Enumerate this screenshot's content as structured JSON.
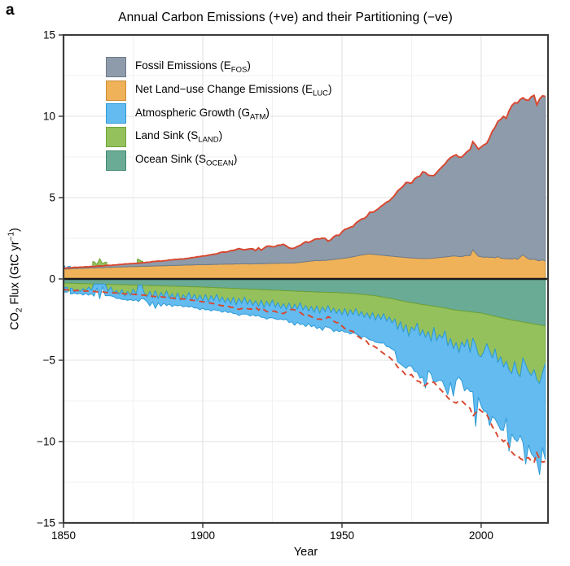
{
  "panel_label": "a",
  "colors": {
    "background": "#FFFFFF",
    "panel_border": "#3C3C3C",
    "zero_line": "#1A1A1A",
    "grid_major": "#E2E2E2",
    "grid_minor": "#F1F1F1",
    "tick": "#333333",
    "text": "#000000",
    "total_line": "#D9472F"
  },
  "axes": {
    "x_label": "Year",
    "y_label": {
      "pre": "CO",
      "sub": "2",
      "mid": " Flux (GtC yr",
      "sup": "−1",
      "post": ")"
    },
    "x_ticks": [
      1850,
      1900,
      1950,
      2000
    ],
    "x_minor_ticks": [
      1875,
      1925,
      1975
    ],
    "y_ticks": [
      15,
      10,
      5,
      0,
      -5,
      -10,
      -15
    ],
    "y_minor_ticks": [
      12.5,
      7.5,
      2.5,
      -2.5,
      -7.5,
      -12.5
    ]
  },
  "legend": {
    "items": [
      {
        "series": "fossil",
        "pre": "Fossil Emissions (E",
        "sub": "FOS",
        "post": ")"
      },
      {
        "series": "land_use",
        "pre": "Net Land−use Change Emissions (E",
        "sub": "LUC",
        "post": ")"
      },
      {
        "series": "atm_growth",
        "pre": "Atmospheric Growth (G",
        "sub": "ATM",
        "post": ")"
      },
      {
        "series": "land_sink",
        "pre": "Land Sink (S",
        "sub": "LAND",
        "post": ")"
      },
      {
        "series": "ocean_sink",
        "pre": "Ocean Sink (S",
        "sub": "OCEAN",
        "post": ")"
      }
    ]
  },
  "chart_data": {
    "type": "area",
    "title": "Annual Carbon Emissions (+ve) and their Partitioning (−ve)",
    "xlabel": "Year",
    "ylabel": "CO2 Flux (GtC yr−1)",
    "units": "GtC per year",
    "x": {
      "start": 1850,
      "end": 2023,
      "step": 1
    },
    "xlim": [
      1850,
      2024
    ],
    "ylim": [
      -15,
      15
    ],
    "grid": true,
    "legend_position": "top-left-inside",
    "stack_positive": [
      "land_use",
      "fossil"
    ],
    "stack_negative": [
      "ocean_sink",
      "land_sink",
      "atm_growth"
    ],
    "total_line": {
      "solid": "total emissions E_FOS + E_LUC",
      "dashed": "mirrored total −(E_FOS + E_LUC)",
      "color": "#D9472F"
    },
    "series": [
      {
        "id": "fossil",
        "name": "Fossil Emissions (E_FOS)",
        "color": "#8E9BAA",
        "edge": "#6E7B8A",
        "values": [
          0.05,
          0.05,
          0.06,
          0.06,
          0.07,
          0.07,
          0.07,
          0.08,
          0.08,
          0.08,
          0.09,
          0.09,
          0.1,
          0.1,
          0.11,
          0.12,
          0.12,
          0.13,
          0.13,
          0.14,
          0.15,
          0.16,
          0.17,
          0.18,
          0.18,
          0.19,
          0.19,
          0.2,
          0.21,
          0.22,
          0.24,
          0.25,
          0.27,
          0.29,
          0.29,
          0.29,
          0.3,
          0.32,
          0.34,
          0.35,
          0.36,
          0.38,
          0.38,
          0.38,
          0.4,
          0.42,
          0.44,
          0.46,
          0.48,
          0.51,
          0.53,
          0.55,
          0.57,
          0.61,
          0.62,
          0.65,
          0.7,
          0.75,
          0.73,
          0.76,
          0.82,
          0.84,
          0.88,
          0.95,
          0.88,
          0.86,
          0.9,
          0.93,
          0.91,
          0.81,
          0.97,
          0.84,
          0.94,
          1.07,
          1.06,
          1.03,
          1.02,
          1.12,
          1.1,
          1.16,
          1.05,
          0.94,
          0.88,
          0.92,
          1.0,
          1.04,
          1.15,
          1.23,
          1.16,
          1.22,
          1.3,
          1.33,
          1.34,
          1.36,
          1.36,
          1.16,
          1.23,
          1.39,
          1.47,
          1.44,
          1.63,
          1.77,
          1.8,
          1.85,
          1.87,
          2.04,
          2.12,
          2.21,
          2.22,
          2.34,
          2.57,
          2.58,
          2.69,
          2.83,
          2.99,
          3.13,
          3.29,
          3.39,
          3.57,
          3.78,
          4.05,
          4.21,
          4.38,
          4.61,
          4.62,
          4.59,
          4.86,
          5.0,
          5.06,
          5.34,
          5.29,
          5.12,
          5.09,
          5.07,
          5.24,
          5.41,
          5.58,
          5.72,
          5.93,
          6.07,
          6.14,
          6.23,
          6.11,
          6.12,
          6.24,
          6.38,
          6.53,
          6.64,
          6.63,
          6.58,
          6.75,
          6.92,
          6.99,
          7.36,
          7.74,
          8.02,
          8.31,
          8.53,
          8.74,
          8.63,
          9.08,
          9.43,
          9.55,
          9.62,
          9.68,
          9.66,
          9.66,
          9.77,
          10.0,
          10.07,
          9.55,
          9.95,
          10.08,
          10.12
        ]
      },
      {
        "id": "land_use",
        "name": "Net Land-use Change Emissions (E_LUC)",
        "color": "#F0B259",
        "edge": "#C98E35",
        "values": [
          0.6,
          0.62,
          0.61,
          0.63,
          0.65,
          0.64,
          0.66,
          0.65,
          0.67,
          0.66,
          0.68,
          0.67,
          0.69,
          0.7,
          0.68,
          0.71,
          0.72,
          0.7,
          0.73,
          0.72,
          0.74,
          0.73,
          0.75,
          0.74,
          0.76,
          0.75,
          0.77,
          0.76,
          0.78,
          0.77,
          0.79,
          0.78,
          0.8,
          0.79,
          0.81,
          0.8,
          0.82,
          0.81,
          0.83,
          0.82,
          0.84,
          0.83,
          0.85,
          0.84,
          0.86,
          0.85,
          0.87,
          0.86,
          0.88,
          0.87,
          0.88,
          0.87,
          0.89,
          0.88,
          0.9,
          0.89,
          0.91,
          0.9,
          0.92,
          0.91,
          0.92,
          0.91,
          0.93,
          0.92,
          0.94,
          0.93,
          0.93,
          0.92,
          0.94,
          0.93,
          0.94,
          0.93,
          0.95,
          0.94,
          0.96,
          0.95,
          0.97,
          0.96,
          0.98,
          0.97,
          0.98,
          0.97,
          0.99,
          0.98,
          1.0,
          1.02,
          1.04,
          1.06,
          1.08,
          1.1,
          1.12,
          1.14,
          1.12,
          1.15,
          1.13,
          1.16,
          1.18,
          1.2,
          1.22,
          1.24,
          1.26,
          1.28,
          1.3,
          1.33,
          1.36,
          1.4,
          1.44,
          1.47,
          1.5,
          1.52,
          1.54,
          1.52,
          1.5,
          1.48,
          1.47,
          1.45,
          1.43,
          1.41,
          1.4,
          1.38,
          1.36,
          1.35,
          1.33,
          1.32,
          1.3,
          1.29,
          1.28,
          1.27,
          1.26,
          1.25,
          1.25,
          1.26,
          1.27,
          1.28,
          1.3,
          1.32,
          1.33,
          1.35,
          1.37,
          1.39,
          1.42,
          1.4,
          1.38,
          1.37,
          1.42,
          1.45,
          1.43,
          1.8,
          1.6,
          1.4,
          1.36,
          1.33,
          1.35,
          1.32,
          1.34,
          1.3,
          1.38,
          1.28,
          1.26,
          1.24,
          1.25,
          1.22,
          1.28,
          1.2,
          1.35,
          1.48,
          1.35,
          1.22,
          1.2,
          1.22,
          1.15,
          1.12,
          1.18,
          1.1
        ]
      },
      {
        "id": "atm_growth",
        "name": "Atmospheric Growth (G_ATM)",
        "color": "#63BBEF",
        "edge": "#2E9BD6",
        "values": [
          -0.15,
          0.3,
          -0.1,
          0.35,
          0.05,
          0.3,
          0.1,
          0.4,
          0.15,
          0.5,
          0.2,
          0.75,
          0.25,
          0.9,
          0.15,
          0.7,
          0.25,
          0.55,
          0.2,
          0.5,
          0.25,
          0.6,
          0.2,
          0.55,
          0.25,
          0.7,
          0.35,
          1.0,
          0.8,
          0.4,
          0.3,
          0.9,
          0.25,
          1.1,
          0.25,
          0.85,
          0.35,
          0.9,
          0.35,
          0.8,
          0.35,
          0.8,
          0.3,
          0.75,
          0.45,
          0.9,
          0.4,
          0.85,
          0.45,
          0.9,
          0.45,
          0.95,
          0.45,
          0.95,
          0.55,
          1.0,
          0.55,
          0.95,
          0.5,
          0.9,
          0.5,
          1.0,
          0.55,
          1.05,
          0.65,
          1.05,
          0.6,
          1.0,
          0.55,
          0.95,
          0.55,
          1.05,
          0.6,
          1.1,
          0.7,
          1.1,
          0.7,
          1.05,
          0.65,
          1.0,
          0.6,
          1.2,
          0.7,
          1.3,
          0.8,
          1.35,
          0.85,
          1.3,
          0.75,
          1.25,
          0.8,
          1.4,
          0.85,
          1.45,
          0.9,
          1.35,
          0.95,
          1.45,
          1.0,
          1.4,
          0.95,
          1.45,
          1.0,
          1.5,
          1.1,
          1.55,
          1.2,
          1.6,
          1.15,
          1.55,
          1.3,
          1.7,
          1.35,
          1.75,
          1.45,
          1.8,
          1.55,
          1.85,
          1.6,
          1.95,
          2.0,
          2.6,
          2.1,
          2.7,
          1.8,
          2.4,
          2.5,
          3.0,
          2.6,
          2.9,
          3.1,
          2.4,
          2.0,
          3.4,
          2.5,
          2.8,
          2.6,
          3.5,
          3.0,
          2.7,
          2.9,
          2.3,
          1.5,
          2.4,
          2.7,
          3.0,
          2.4,
          3.3,
          5.0,
          2.6,
          3.0,
          3.7,
          4.2,
          4.6,
          3.6,
          4.3,
          3.8,
          4.5,
          3.9,
          3.5,
          5.0,
          3.7,
          4.8,
          4.2,
          3.6,
          5.2,
          6.1,
          4.5,
          4.8,
          5.4,
          5.0,
          5.6,
          4.6,
          5.9
        ]
      },
      {
        "id": "land_sink",
        "name": "Land Sink (S_LAND)",
        "color": "#95C15D",
        "edge": "#6FA336",
        "values": [
          0.45,
          0.25,
          0.5,
          0.3,
          0.55,
          0.35,
          0.5,
          0.3,
          0.45,
          0.2,
          0.4,
          -0.3,
          -0.1,
          -0.45,
          -0.15,
          -0.2,
          0.45,
          0.15,
          0.55,
          0.35,
          0.6,
          0.3,
          0.7,
          0.4,
          0.65,
          0.25,
          0.55,
          -0.25,
          -0.1,
          0.45,
          0.7,
          0.35,
          0.75,
          0.3,
          0.8,
          0.4,
          0.7,
          0.3,
          0.75,
          0.45,
          0.8,
          0.4,
          0.85,
          0.5,
          0.75,
          0.35,
          0.8,
          0.45,
          0.85,
          0.5,
          0.85,
          0.45,
          0.9,
          0.5,
          0.8,
          0.4,
          0.85,
          0.55,
          0.9,
          0.6,
          0.95,
          0.55,
          1.0,
          0.6,
          0.9,
          0.5,
          0.95,
          0.65,
          1.0,
          0.7,
          1.05,
          0.65,
          1.1,
          0.7,
          1.0,
          0.6,
          1.05,
          0.75,
          1.1,
          0.8,
          1.15,
          0.75,
          1.2,
          0.8,
          1.1,
          0.7,
          1.15,
          0.85,
          1.2,
          0.9,
          1.25,
          0.85,
          1.3,
          0.9,
          1.2,
          0.8,
          1.25,
          0.95,
          1.3,
          1.0,
          1.35,
          0.95,
          1.4,
          1.0,
          1.3,
          0.9,
          1.35,
          1.05,
          1.4,
          1.1,
          1.45,
          1.05,
          1.5,
          1.1,
          1.4,
          1.0,
          1.45,
          1.15,
          1.5,
          1.2,
          1.8,
          1.3,
          1.9,
          1.4,
          2.1,
          1.5,
          1.7,
          1.2,
          1.95,
          1.55,
          2.0,
          1.6,
          2.2,
          1.3,
          2.1,
          1.7,
          1.9,
          1.4,
          2.3,
          1.8,
          2.4,
          2.0,
          2.6,
          1.9,
          2.2,
          1.7,
          2.5,
          1.6,
          2.0,
          2.6,
          2.7,
          2.3,
          1.8,
          2.2,
          2.6,
          2.0,
          2.8,
          2.4,
          3.0,
          2.6,
          3.1,
          3.3,
          2.5,
          3.2,
          3.4,
          2.2,
          2.6,
          3.0,
          3.2,
          2.8,
          3.4,
          3.6,
          2.9,
          2.3
        ]
      },
      {
        "id": "ocean_sink",
        "name": "Ocean Sink (S_OCEAN)",
        "color": "#69AB94",
        "edge": "#458A72",
        "values": [
          0.25,
          0.26,
          0.26,
          0.27,
          0.27,
          0.28,
          0.28,
          0.29,
          0.29,
          0.3,
          0.3,
          0.31,
          0.31,
          0.32,
          0.32,
          0.33,
          0.33,
          0.34,
          0.34,
          0.35,
          0.35,
          0.36,
          0.36,
          0.37,
          0.37,
          0.38,
          0.38,
          0.39,
          0.39,
          0.4,
          0.4,
          0.41,
          0.41,
          0.42,
          0.42,
          0.43,
          0.43,
          0.44,
          0.44,
          0.45,
          0.45,
          0.46,
          0.46,
          0.47,
          0.47,
          0.48,
          0.48,
          0.49,
          0.49,
          0.5,
          0.5,
          0.51,
          0.52,
          0.52,
          0.53,
          0.54,
          0.55,
          0.55,
          0.56,
          0.57,
          0.58,
          0.58,
          0.59,
          0.6,
          0.61,
          0.61,
          0.62,
          0.63,
          0.64,
          0.64,
          0.65,
          0.66,
          0.67,
          0.67,
          0.68,
          0.69,
          0.7,
          0.7,
          0.71,
          0.72,
          0.73,
          0.73,
          0.74,
          0.75,
          0.76,
          0.76,
          0.77,
          0.78,
          0.79,
          0.79,
          0.8,
          0.81,
          0.81,
          0.82,
          0.82,
          0.83,
          0.83,
          0.84,
          0.84,
          0.85,
          0.86,
          0.87,
          0.88,
          0.89,
          0.9,
          0.92,
          0.93,
          0.95,
          0.96,
          0.98,
          1.0,
          1.02,
          1.04,
          1.07,
          1.1,
          1.13,
          1.16,
          1.19,
          1.22,
          1.26,
          1.3,
          1.33,
          1.36,
          1.4,
          1.43,
          1.46,
          1.49,
          1.52,
          1.55,
          1.58,
          1.6,
          1.63,
          1.65,
          1.68,
          1.7,
          1.73,
          1.76,
          1.79,
          1.82,
          1.86,
          1.9,
          1.92,
          1.94,
          1.96,
          1.98,
          2.0,
          2.02,
          2.04,
          2.06,
          2.08,
          2.1,
          2.14,
          2.18,
          2.22,
          2.26,
          2.3,
          2.34,
          2.38,
          2.42,
          2.46,
          2.5,
          2.53,
          2.56,
          2.59,
          2.62,
          2.65,
          2.68,
          2.71,
          2.74,
          2.77,
          2.8,
          2.83,
          2.86,
          2.9
        ]
      }
    ]
  }
}
